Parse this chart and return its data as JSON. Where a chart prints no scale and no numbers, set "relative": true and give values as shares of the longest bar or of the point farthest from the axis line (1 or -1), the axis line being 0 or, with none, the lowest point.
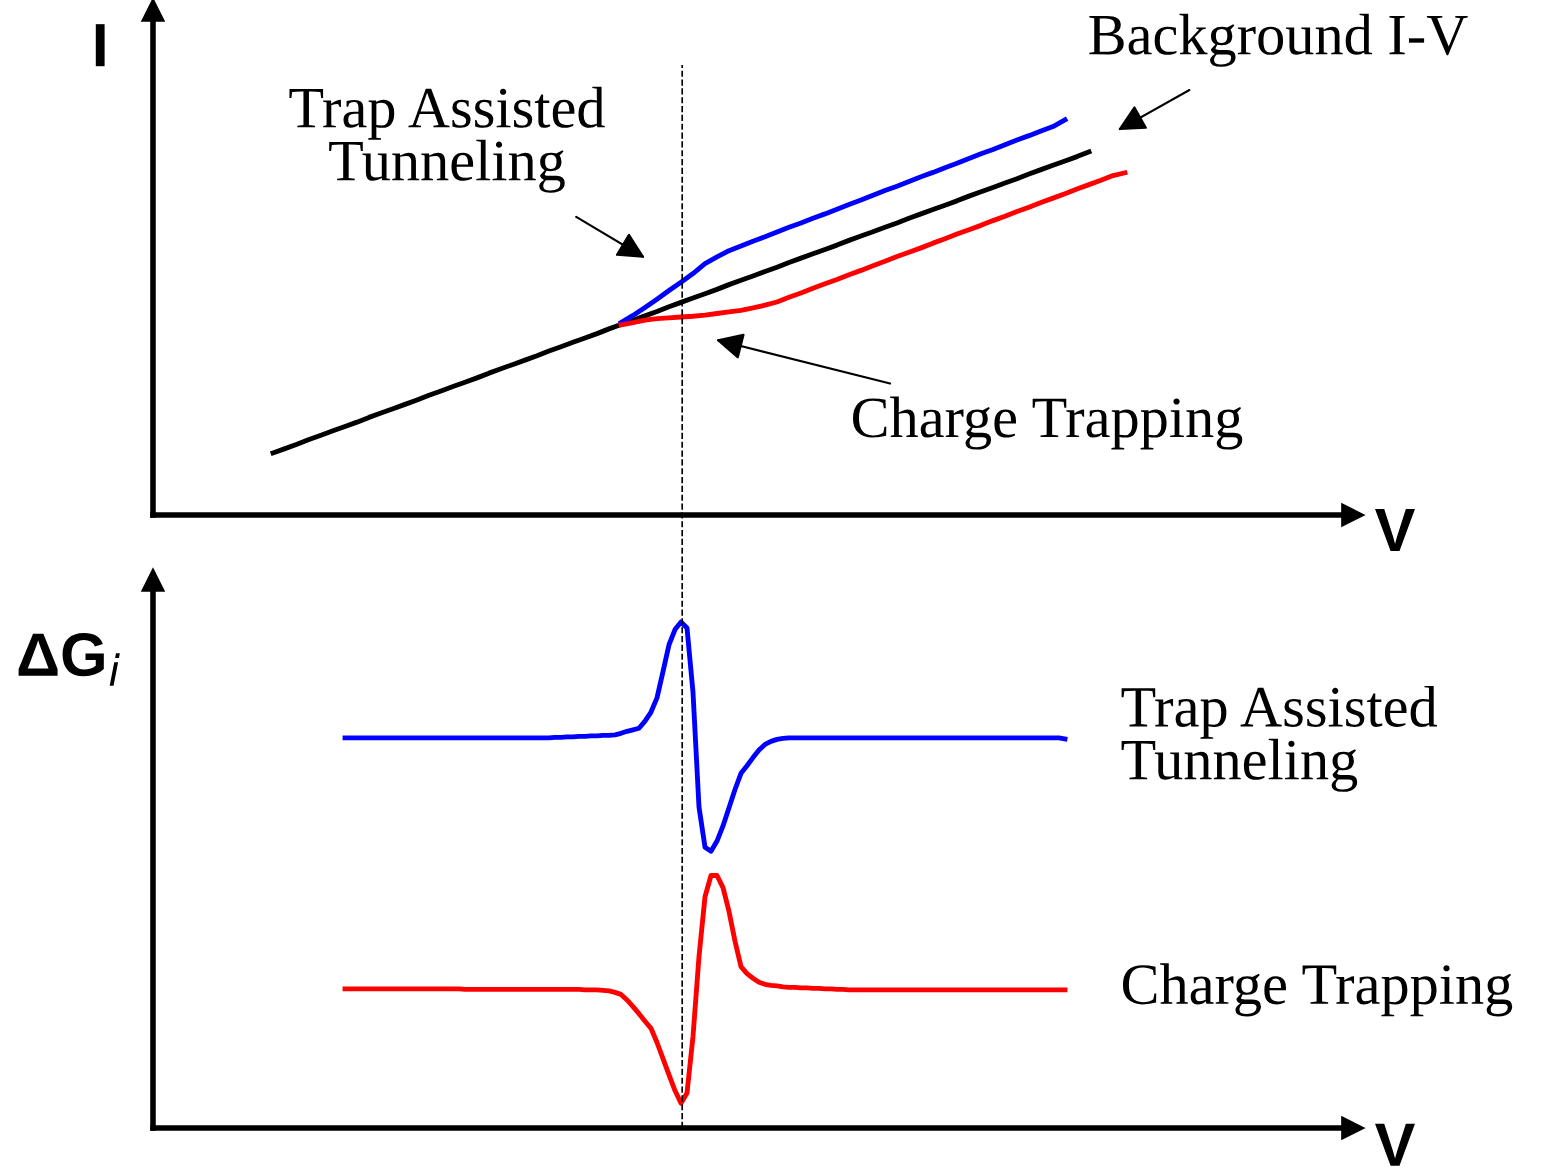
{
  "chart_data": [
    {
      "type": "line",
      "relative": true,
      "ylabel": "I",
      "xlabel": "V",
      "marker": "none",
      "line_style": "solid",
      "categories": [
        null,
        null,
        null,
        null,
        null,
        null,
        null,
        null,
        null,
        null,
        null,
        null,
        null,
        null,
        null,
        null,
        null,
        null,
        null,
        null,
        null,
        null,
        null,
        null,
        null,
        null,
        null,
        null,
        null,
        null,
        null,
        null,
        null,
        null,
        null,
        null,
        null,
        null,
        null,
        null,
        null,
        null,
        null,
        null,
        null,
        null,
        null,
        null,
        null,
        null,
        null,
        null,
        null,
        null,
        null,
        null,
        null,
        null,
        null,
        null,
        null,
        null,
        null,
        null,
        null,
        null,
        null,
        null,
        null,
        null,
        null,
        null
      ],
      "series": [
        {
          "color": "#000000",
          "values": [
            0.157,
            0.168,
            0.179,
            0.191,
            0.202,
            0.213,
            0.224,
            0.235,
            0.247,
            0.258,
            0.269,
            0.28,
            0.291,
            0.303,
            0.314,
            0.325,
            0.336,
            0.347,
            0.359,
            0.37,
            0.381,
            0.392,
            0.403,
            0.415,
            0.426,
            0.437,
            0.448,
            0.459,
            0.471,
            0.482,
            0.493,
            0.504,
            0.515,
            0.527,
            0.538,
            0.549,
            0.56,
            0.571,
            0.583,
            0.594,
            0.605,
            0.616,
            0.627,
            0.639,
            0.65,
            0.661,
            0.672,
            0.683,
            0.695,
            0.706,
            0.717,
            0.728,
            0.739,
            0.751,
            0.762,
            0.773,
            0.784,
            0.795,
            0.807,
            0.818,
            0.829,
            0.84,
            0.851,
            0.863,
            0.874,
            0.885,
            0.896,
            0.907,
            0.919,
            null,
            null,
            null
          ]
        },
        {
          "color": "#0000ff",
          "values": [
            null,
            null,
            null,
            null,
            null,
            null,
            null,
            null,
            null,
            null,
            null,
            null,
            null,
            null,
            null,
            null,
            null,
            null,
            null,
            null,
            null,
            null,
            null,
            null,
            null,
            null,
            null,
            null,
            null,
            0.487,
            0.505,
            0.525,
            0.546,
            0.568,
            0.589,
            0.611,
            0.636,
            0.653,
            0.669,
            0.681,
            0.693,
            0.704,
            0.716,
            0.728,
            0.739,
            0.751,
            0.762,
            0.774,
            0.786,
            0.797,
            0.809,
            0.821,
            0.832,
            0.844,
            0.856,
            0.867,
            0.879,
            0.89,
            0.902,
            0.914,
            0.925,
            0.937,
            0.949,
            0.96,
            0.972,
            0.983,
            1.0,
            null,
            null,
            null,
            null,
            null
          ]
        },
        {
          "color": "#ff0000",
          "values": [
            null,
            null,
            null,
            null,
            null,
            null,
            null,
            null,
            null,
            null,
            null,
            null,
            null,
            null,
            null,
            null,
            null,
            null,
            null,
            null,
            null,
            null,
            null,
            null,
            null,
            null,
            null,
            null,
            null,
            0.481,
            0.487,
            0.493,
            0.497,
            0.499,
            0.501,
            0.503,
            0.506,
            0.51,
            0.514,
            0.518,
            0.524,
            0.531,
            0.539,
            0.551,
            0.562,
            0.574,
            0.585,
            0.596,
            0.608,
            0.619,
            0.631,
            0.642,
            0.654,
            0.665,
            0.676,
            0.688,
            0.699,
            0.711,
            0.722,
            0.733,
            0.745,
            0.756,
            0.768,
            0.779,
            0.791,
            0.802,
            0.813,
            0.825,
            0.836,
            0.847,
            0.859,
            0.866
          ]
        }
      ],
      "annotations": [
        "Trap Assisted\nTunneling",
        "Background I-V",
        "Charge Trapping"
      ]
    },
    {
      "type": "line",
      "relative": true,
      "ylabel": "ΔG$_{i}$",
      "xlabel": "V",
      "marker": "none",
      "line_style": "solid",
      "categories": [
        null,
        null,
        null,
        null,
        null,
        null,
        null,
        null,
        null,
        null,
        null,
        null,
        null,
        null,
        null,
        null,
        null,
        null,
        null,
        null,
        null,
        null,
        null,
        null,
        null,
        null,
        null,
        null,
        null,
        null,
        null,
        null,
        null,
        null,
        null,
        null,
        null,
        null,
        null,
        null,
        null,
        null,
        null,
        null,
        null,
        null,
        null,
        null,
        null,
        null,
        null,
        null,
        null,
        null,
        null,
        null,
        null,
        null,
        null,
        null,
        null,
        null,
        null,
        null,
        null,
        null,
        null,
        null,
        null,
        null,
        null,
        null,
        null,
        null,
        null,
        null,
        null,
        null,
        null,
        null,
        null,
        null,
        null,
        null,
        null,
        null,
        null,
        null,
        null,
        null,
        null,
        null,
        null,
        null,
        null,
        null,
        null,
        null,
        null,
        null,
        null,
        null,
        null,
        null,
        null,
        null,
        null,
        null,
        null,
        null,
        null,
        null,
        null,
        null,
        null,
        null,
        null,
        null,
        null,
        null,
        null
      ],
      "series": [
        {
          "name": "Trap Assisted\nTunneling",
          "color": "#0000ff",
          "values": [
            0.771,
            0.771,
            0.771,
            0.771,
            0.771,
            0.771,
            0.771,
            0.771,
            0.771,
            0.771,
            0.771,
            0.771,
            0.771,
            0.771,
            0.771,
            0.771,
            0.771,
            0.771,
            0.771,
            0.771,
            0.771,
            0.771,
            0.771,
            0.771,
            0.771,
            0.771,
            0.771,
            0.771,
            0.771,
            0.771,
            0.771,
            0.771,
            0.771,
            0.771,
            0.771,
            0.772,
            0.772,
            0.773,
            0.773,
            0.774,
            0.774,
            0.775,
            0.775,
            0.776,
            0.776,
            0.777,
            0.78,
            0.784,
            0.787,
            0.79,
            0.804,
            0.822,
            0.85,
            0.902,
            0.955,
            0.985,
            1.0,
            0.988,
            0.861,
            0.634,
            0.555,
            0.547,
            0.567,
            0.597,
            0.633,
            0.669,
            0.701,
            0.716,
            0.732,
            0.747,
            0.758,
            0.764,
            0.768,
            0.77,
            0.771,
            0.771,
            0.771,
            0.771,
            0.771,
            0.771,
            0.771,
            0.771,
            0.771,
            0.771,
            0.771,
            0.771,
            0.771,
            0.771,
            0.771,
            0.771,
            0.771,
            0.771,
            0.771,
            0.771,
            0.771,
            0.771,
            0.771,
            0.771,
            0.771,
            0.771,
            0.771,
            0.771,
            0.771,
            0.771,
            0.771,
            0.771,
            0.771,
            0.771,
            0.771,
            0.771,
            0.771,
            0.771,
            0.771,
            0.771,
            0.771,
            0.771,
            0.771,
            0.771,
            0.771,
            0.771,
            0.769
          ]
        },
        {
          "name": "Charge Trapping",
          "color": "#ff0000",
          "values": [
            0.275,
            0.275,
            0.275,
            0.275,
            0.275,
            0.275,
            0.275,
            0.275,
            0.275,
            0.275,
            0.275,
            0.275,
            0.275,
            0.275,
            0.275,
            0.275,
            0.275,
            0.275,
            0.275,
            0.275,
            0.274,
            0.274,
            0.274,
            0.274,
            0.274,
            0.274,
            0.274,
            0.274,
            0.274,
            0.274,
            0.274,
            0.274,
            0.274,
            0.274,
            0.274,
            0.274,
            0.274,
            0.274,
            0.274,
            0.274,
            0.273,
            0.273,
            0.273,
            0.272,
            0.271,
            0.268,
            0.264,
            0.253,
            0.24,
            0.226,
            0.211,
            0.197,
            0.169,
            0.137,
            0.105,
            0.074,
            0.049,
            0.069,
            0.181,
            0.339,
            0.457,
            0.499,
            0.499,
            0.475,
            0.428,
            0.369,
            0.319,
            0.305,
            0.296,
            0.288,
            0.284,
            0.282,
            0.281,
            0.279,
            0.278,
            0.278,
            0.277,
            0.277,
            0.276,
            0.276,
            0.275,
            0.275,
            0.274,
            0.274,
            0.273,
            0.273,
            0.273,
            0.273,
            0.273,
            0.273,
            0.273,
            0.273,
            0.273,
            0.273,
            0.273,
            0.273,
            0.273,
            0.273,
            0.273,
            0.273,
            0.273,
            0.273,
            0.273,
            0.273,
            0.273,
            0.273,
            0.273,
            0.273,
            0.273,
            0.273,
            0.273,
            0.273,
            0.273,
            0.273,
            0.273,
            0.273,
            0.273,
            0.273,
            0.273,
            0.273,
            0.273
          ]
        }
      ]
    }
  ]
}
